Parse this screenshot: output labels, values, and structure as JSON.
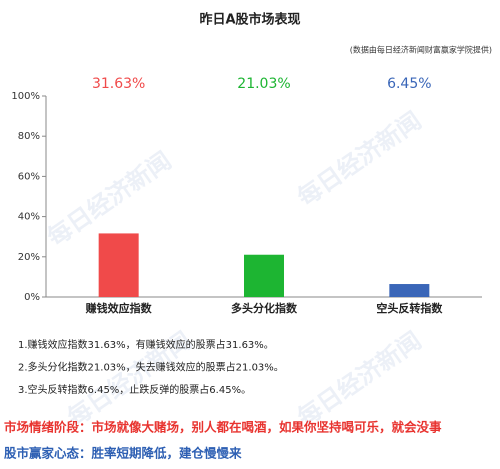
{
  "chart_data": {
    "type": "bar",
    "title": "昨日A股市场表现",
    "subtitle": "(数据由每日经济新闻财富赢家学院提供)",
    "categories": [
      "赚钱效应指数",
      "多头分化指数",
      "空头反转指数"
    ],
    "values": [
      31.63,
      21.03,
      6.45
    ],
    "value_labels": [
      "31.63%",
      "21.03%",
      "6.45%"
    ],
    "colors": [
      "#f04a4a",
      "#1db532",
      "#3a66b8"
    ],
    "ylim": [
      0,
      100
    ],
    "yticks": [
      {
        "value": 0,
        "label": "0%"
      },
      {
        "value": 20,
        "label": "20%"
      },
      {
        "value": 40,
        "label": "40%"
      },
      {
        "value": 60,
        "label": "60%"
      },
      {
        "value": 80,
        "label": "80%"
      },
      {
        "value": 100,
        "label": "100%"
      }
    ],
    "watermark": "每日经济新闻"
  },
  "notes": [
    "1.赚钱效应指数31.63%，有赚钱效应的股票占31.63%。",
    "2.多头分化指数21.03%，失去赚钱效应的股票占21.03%。",
    "3.空头反转指数6.45%，止跌反弹的股票占6.45%。"
  ],
  "footer": [
    {
      "text": "市场情绪阶段：市场就像大赌场，别人都在喝酒，如果你坚持喝可乐，就会没事",
      "color": "#e8332f"
    },
    {
      "text": "股市赢家心态：胜率短期降低，建仓慢慢来",
      "color": "#2d5fb3"
    }
  ]
}
